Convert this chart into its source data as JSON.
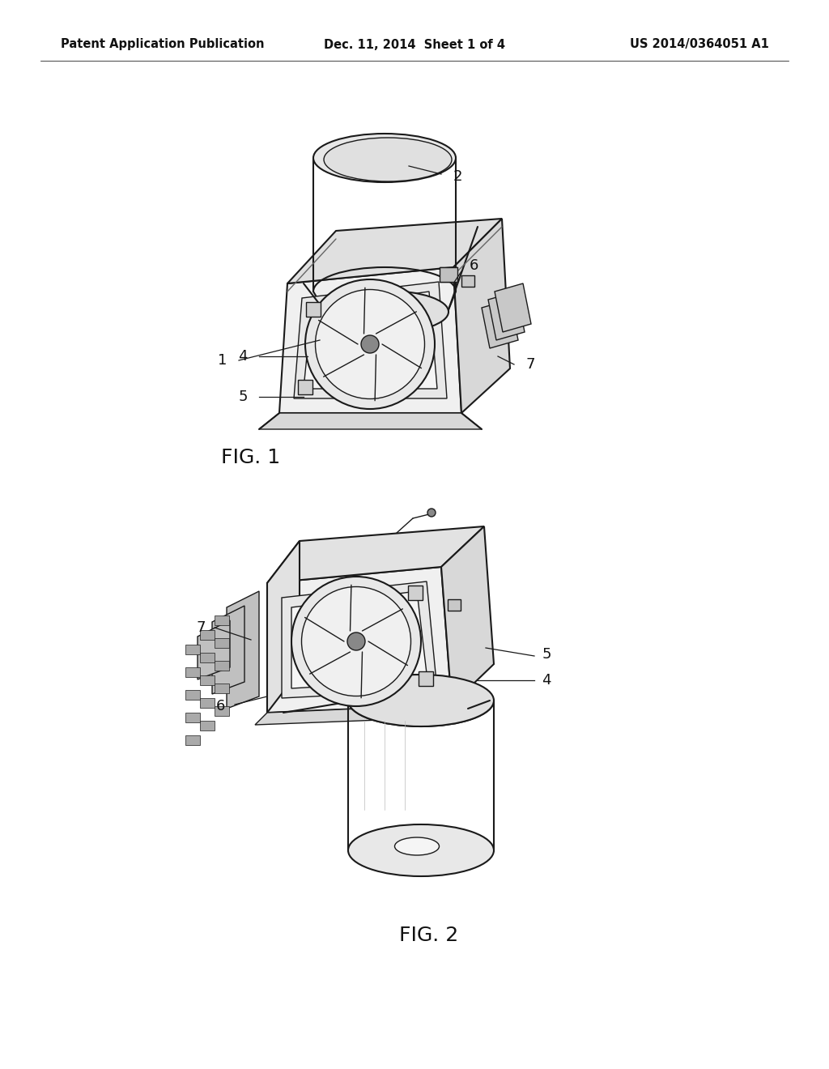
{
  "background_color": "#ffffff",
  "header_left": "Patent Application Publication",
  "header_center": "Dec. 11, 2014  Sheet 1 of 4",
  "header_right": "US 2014/0364051 A1",
  "header_fontsize": 10.5,
  "fig1_label": "FIG. 1",
  "fig2_label": "FIG. 2",
  "line_color": "#1a1a1a",
  "label_color": "#111111",
  "annotation_fontsize": 13,
  "fig_label_fontsize": 18
}
